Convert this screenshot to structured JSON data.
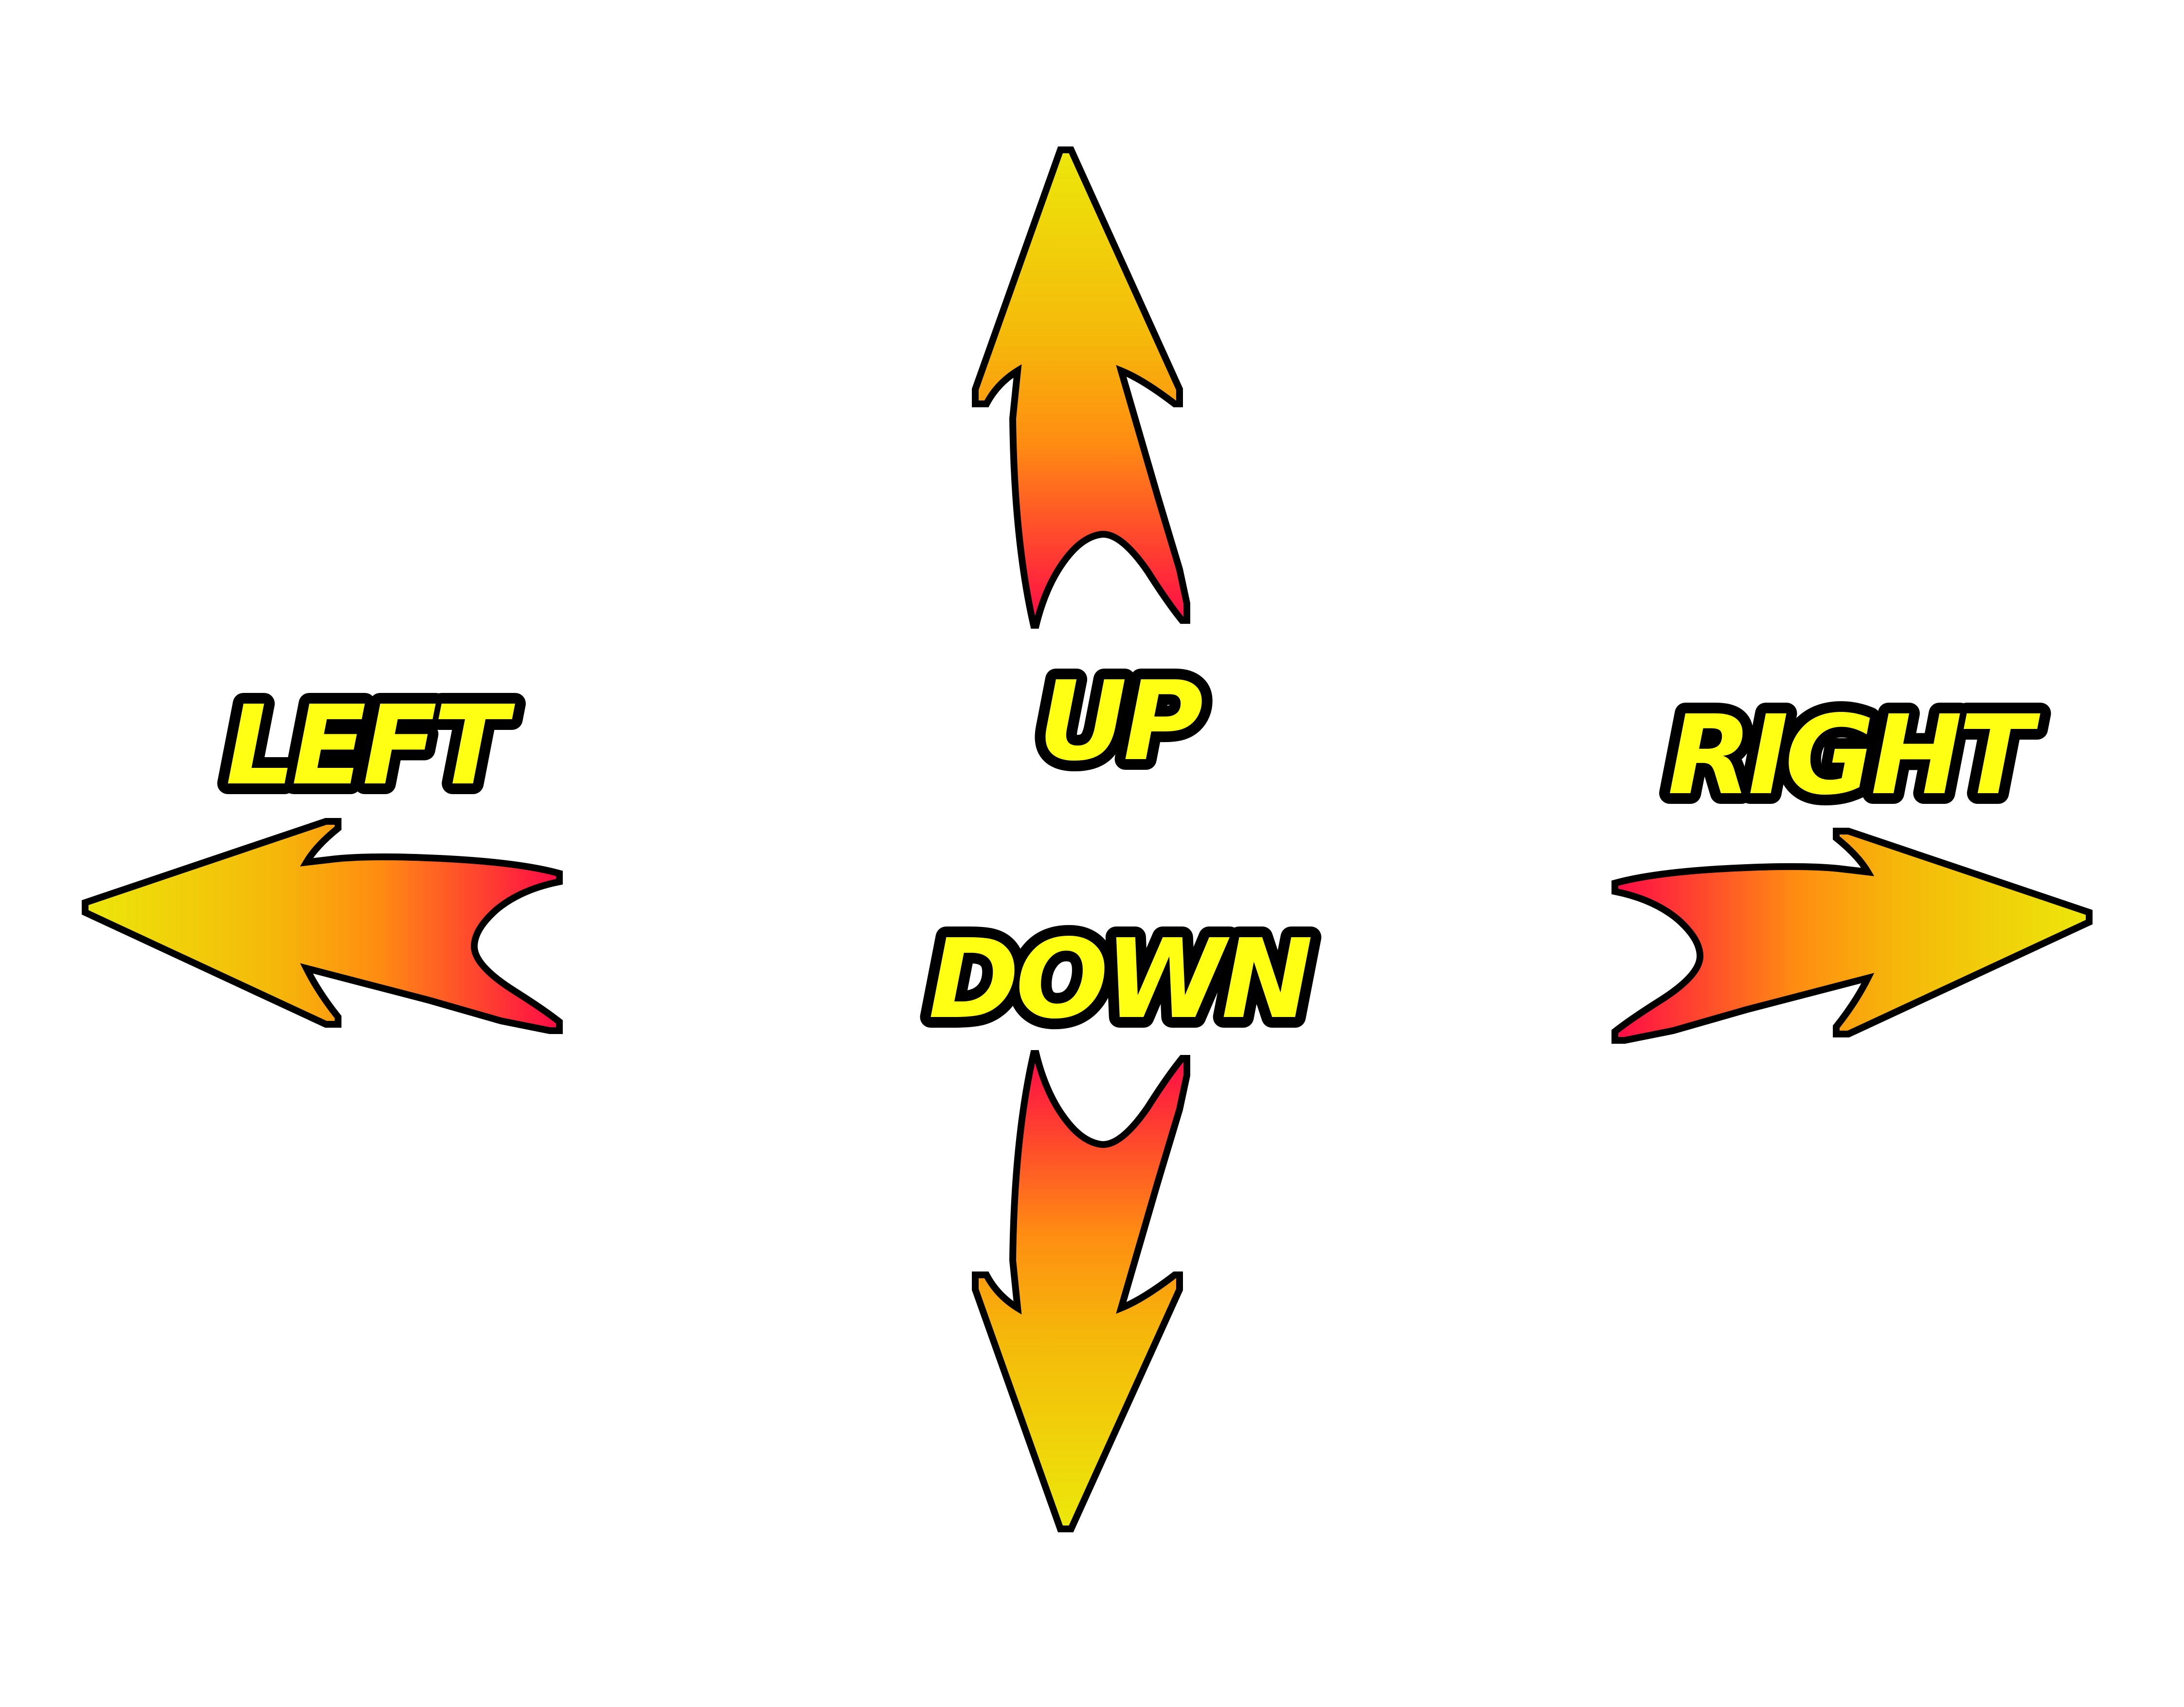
{
  "labels": {
    "up": "UP",
    "down": "DOWN",
    "left": "LEFT",
    "right": "RIGHT"
  },
  "icons": {
    "up": "arrow-up-icon",
    "down": "arrow-down-icon",
    "left": "arrow-left-icon",
    "right": "arrow-right-icon"
  },
  "colors": {
    "label_fill": "#ffff14",
    "outline": "#000000",
    "arrow_tip": "#ece70a",
    "arrow_mid": "#ff8c12",
    "arrow_base": "#ff0a46",
    "background": "#ffffff"
  }
}
